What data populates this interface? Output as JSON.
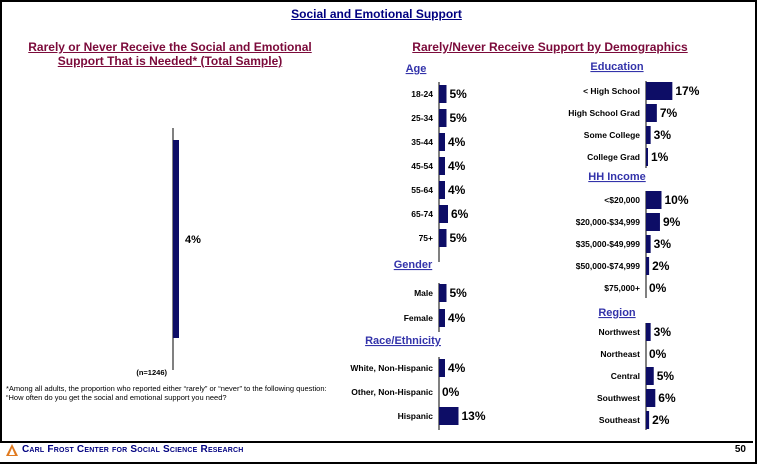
{
  "main_title": "Social and Emotional Support",
  "left_title": "Rarely or Never Receive the Social and Emotional Support That is Needed* (Total Sample)",
  "right_title": "Rarely/Never Receive Support by Demographics",
  "footnote": "*Among all adults, the proportion who reported either “rarely” or “never” to the following question: “How often do you get the social and emotional support you need?",
  "footer": {
    "org_name": "Carl Frost Center for Social Science Research",
    "page_number": "50"
  },
  "colors": {
    "bar": "#0d0d66",
    "title": "#7b0a3a",
    "header": "#3333aa",
    "main_title": "#000080"
  },
  "chart_data": [
    {
      "type": "bar",
      "title": "Rarely or Never Receive the Social and Emotional Support That is Needed* (Total Sample)",
      "categories": [
        "(n=1246)"
      ],
      "values": [
        4
      ],
      "labels": [
        "4%"
      ]
    },
    {
      "type": "bar",
      "title": "Age",
      "categories": [
        "18-24",
        "25-34",
        "35-44",
        "45-54",
        "55-64",
        "65-74",
        "75+"
      ],
      "values": [
        5,
        5,
        4,
        4,
        4,
        6,
        5
      ],
      "labels": [
        "5%",
        "5%",
        "4%",
        "4%",
        "4%",
        "6%",
        "5%"
      ]
    },
    {
      "type": "bar",
      "title": "Gender",
      "categories": [
        "Male",
        "Female"
      ],
      "values": [
        5,
        4
      ],
      "labels": [
        "5%",
        "4%"
      ]
    },
    {
      "type": "bar",
      "title": "Race/Ethnicity",
      "categories": [
        "White, Non-Hispanic",
        "Other, Non-Hispanic",
        "Hispanic"
      ],
      "values": [
        4,
        0,
        13
      ],
      "labels": [
        "4%",
        "0%",
        "13%"
      ]
    },
    {
      "type": "bar",
      "title": "Education",
      "categories": [
        "< High School",
        "High School Grad",
        "Some College",
        "College Grad"
      ],
      "values": [
        17,
        7,
        3,
        1
      ],
      "labels": [
        "17%",
        "7%",
        "3%",
        "1%"
      ]
    },
    {
      "type": "bar",
      "title": "HH Income",
      "categories": [
        "<$20,000",
        "$20,000-$34,999",
        "$35,000-$49,999",
        "$50,000-$74,999",
        "$75,000+"
      ],
      "values": [
        10,
        9,
        3,
        2,
        0
      ],
      "labels": [
        "10%",
        "9%",
        "3%",
        "2%",
        "0%"
      ]
    },
    {
      "type": "bar",
      "title": "Region",
      "categories": [
        "Northwest",
        "Northeast",
        "Central",
        "Southwest",
        "Southeast"
      ],
      "values": [
        3,
        0,
        5,
        6,
        2
      ],
      "labels": [
        "3%",
        "0%",
        "5%",
        "6%",
        "2%"
      ]
    }
  ]
}
